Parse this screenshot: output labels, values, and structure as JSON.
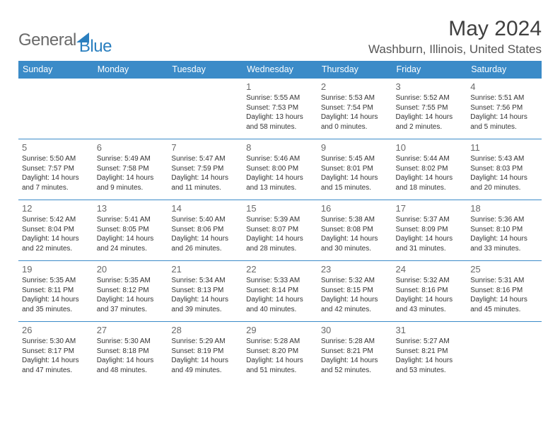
{
  "brand": {
    "part1": "General",
    "part2": "Blue"
  },
  "title": "May 2024",
  "location": "Washburn, Illinois, United States",
  "colors": {
    "header_bg": "#3b8bc8",
    "header_text": "#ffffff",
    "border": "#3b8bc8",
    "daynum": "#6a6a6a",
    "body_text": "#333333",
    "title_text": "#404040",
    "logo_gray": "#6a6a6a",
    "logo_blue": "#2a7fbf",
    "background": "#ffffff"
  },
  "fonts": {
    "family": "Arial",
    "title_size": 30,
    "location_size": 17,
    "header_size": 12.5,
    "daynum_size": 13,
    "info_size": 10
  },
  "weekdays": [
    "Sunday",
    "Monday",
    "Tuesday",
    "Wednesday",
    "Thursday",
    "Friday",
    "Saturday"
  ],
  "weeks": [
    [
      null,
      null,
      null,
      {
        "n": "1",
        "sr": "5:55 AM",
        "ss": "7:53 PM",
        "dl": "13 hours and 58 minutes."
      },
      {
        "n": "2",
        "sr": "5:53 AM",
        "ss": "7:54 PM",
        "dl": "14 hours and 0 minutes."
      },
      {
        "n": "3",
        "sr": "5:52 AM",
        "ss": "7:55 PM",
        "dl": "14 hours and 2 minutes."
      },
      {
        "n": "4",
        "sr": "5:51 AM",
        "ss": "7:56 PM",
        "dl": "14 hours and 5 minutes."
      }
    ],
    [
      {
        "n": "5",
        "sr": "5:50 AM",
        "ss": "7:57 PM",
        "dl": "14 hours and 7 minutes."
      },
      {
        "n": "6",
        "sr": "5:49 AM",
        "ss": "7:58 PM",
        "dl": "14 hours and 9 minutes."
      },
      {
        "n": "7",
        "sr": "5:47 AM",
        "ss": "7:59 PM",
        "dl": "14 hours and 11 minutes."
      },
      {
        "n": "8",
        "sr": "5:46 AM",
        "ss": "8:00 PM",
        "dl": "14 hours and 13 minutes."
      },
      {
        "n": "9",
        "sr": "5:45 AM",
        "ss": "8:01 PM",
        "dl": "14 hours and 15 minutes."
      },
      {
        "n": "10",
        "sr": "5:44 AM",
        "ss": "8:02 PM",
        "dl": "14 hours and 18 minutes."
      },
      {
        "n": "11",
        "sr": "5:43 AM",
        "ss": "8:03 PM",
        "dl": "14 hours and 20 minutes."
      }
    ],
    [
      {
        "n": "12",
        "sr": "5:42 AM",
        "ss": "8:04 PM",
        "dl": "14 hours and 22 minutes."
      },
      {
        "n": "13",
        "sr": "5:41 AM",
        "ss": "8:05 PM",
        "dl": "14 hours and 24 minutes."
      },
      {
        "n": "14",
        "sr": "5:40 AM",
        "ss": "8:06 PM",
        "dl": "14 hours and 26 minutes."
      },
      {
        "n": "15",
        "sr": "5:39 AM",
        "ss": "8:07 PM",
        "dl": "14 hours and 28 minutes."
      },
      {
        "n": "16",
        "sr": "5:38 AM",
        "ss": "8:08 PM",
        "dl": "14 hours and 30 minutes."
      },
      {
        "n": "17",
        "sr": "5:37 AM",
        "ss": "8:09 PM",
        "dl": "14 hours and 31 minutes."
      },
      {
        "n": "18",
        "sr": "5:36 AM",
        "ss": "8:10 PM",
        "dl": "14 hours and 33 minutes."
      }
    ],
    [
      {
        "n": "19",
        "sr": "5:35 AM",
        "ss": "8:11 PM",
        "dl": "14 hours and 35 minutes."
      },
      {
        "n": "20",
        "sr": "5:35 AM",
        "ss": "8:12 PM",
        "dl": "14 hours and 37 minutes."
      },
      {
        "n": "21",
        "sr": "5:34 AM",
        "ss": "8:13 PM",
        "dl": "14 hours and 39 minutes."
      },
      {
        "n": "22",
        "sr": "5:33 AM",
        "ss": "8:14 PM",
        "dl": "14 hours and 40 minutes."
      },
      {
        "n": "23",
        "sr": "5:32 AM",
        "ss": "8:15 PM",
        "dl": "14 hours and 42 minutes."
      },
      {
        "n": "24",
        "sr": "5:32 AM",
        "ss": "8:16 PM",
        "dl": "14 hours and 43 minutes."
      },
      {
        "n": "25",
        "sr": "5:31 AM",
        "ss": "8:16 PM",
        "dl": "14 hours and 45 minutes."
      }
    ],
    [
      {
        "n": "26",
        "sr": "5:30 AM",
        "ss": "8:17 PM",
        "dl": "14 hours and 47 minutes."
      },
      {
        "n": "27",
        "sr": "5:30 AM",
        "ss": "8:18 PM",
        "dl": "14 hours and 48 minutes."
      },
      {
        "n": "28",
        "sr": "5:29 AM",
        "ss": "8:19 PM",
        "dl": "14 hours and 49 minutes."
      },
      {
        "n": "29",
        "sr": "5:28 AM",
        "ss": "8:20 PM",
        "dl": "14 hours and 51 minutes."
      },
      {
        "n": "30",
        "sr": "5:28 AM",
        "ss": "8:21 PM",
        "dl": "14 hours and 52 minutes."
      },
      {
        "n": "31",
        "sr": "5:27 AM",
        "ss": "8:21 PM",
        "dl": "14 hours and 53 minutes."
      },
      null
    ]
  ],
  "labels": {
    "sunrise": "Sunrise: ",
    "sunset": "Sunset: ",
    "daylight": "Daylight: "
  }
}
